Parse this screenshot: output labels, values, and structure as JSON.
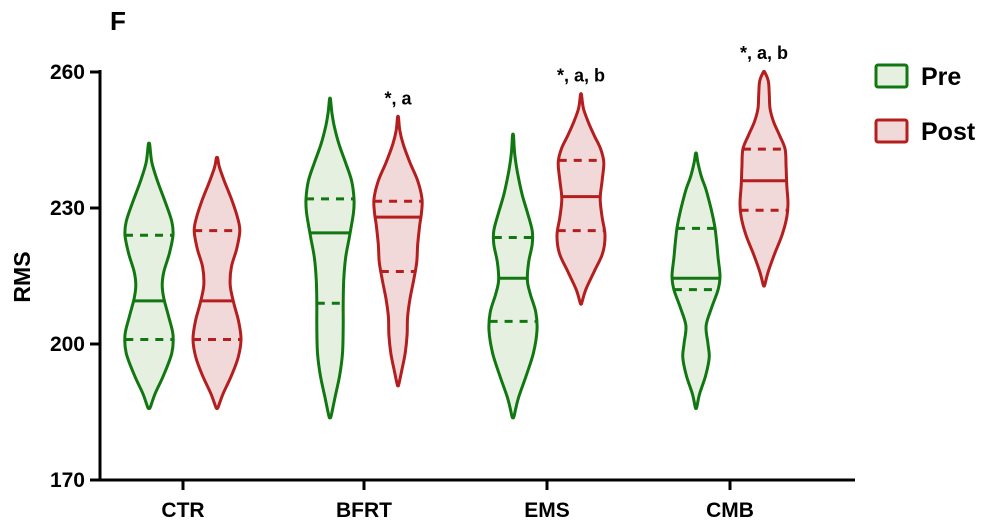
{
  "panel_label": "F",
  "colors": {
    "pre_stroke": "#117711",
    "pre_fill": "#e6f0e1",
    "post_stroke": "#b51e1e",
    "post_fill": "#f2d9d9",
    "axis": "#000000"
  },
  "chart_data": {
    "type": "violin",
    "ylabel": "RMS",
    "ylim": [
      170,
      260
    ],
    "yticks": [
      170,
      200,
      230,
      260
    ],
    "categories": [
      "CTR",
      "BFRT",
      "EMS",
      "CMB"
    ],
    "annotations": [
      "",
      "*, a",
      "*, a, b",
      "*, a, b"
    ],
    "legend": {
      "position": "top-right"
    },
    "series": [
      {
        "name": "Pre",
        "groups": [
          {
            "category": "CTR",
            "min": 186,
            "max": 244,
            "q1": 201,
            "median": 209.5,
            "q3": 224,
            "density": [
              [
                186,
                0.05
              ],
              [
                189,
                0.25
              ],
              [
                193,
                0.6
              ],
              [
                198,
                0.95
              ],
              [
                202,
                1.0
              ],
              [
                206,
                0.82
              ],
              [
                210,
                0.62
              ],
              [
                213,
                0.55
              ],
              [
                216,
                0.62
              ],
              [
                220,
                0.85
              ],
              [
                224,
                1.0
              ],
              [
                227,
                0.95
              ],
              [
                231,
                0.7
              ],
              [
                236,
                0.35
              ],
              [
                240,
                0.12
              ],
              [
                244,
                0.03
              ]
            ]
          },
          {
            "category": "BFRT",
            "min": 184,
            "max": 254,
            "q1": 209,
            "median": 224.5,
            "q3": 232,
            "density": [
              [
                184,
                0.04
              ],
              [
                188,
                0.2
              ],
              [
                193,
                0.4
              ],
              [
                198,
                0.52
              ],
              [
                204,
                0.55
              ],
              [
                209,
                0.55
              ],
              [
                214,
                0.57
              ],
              [
                219,
                0.65
              ],
              [
                224,
                0.82
              ],
              [
                229,
                0.98
              ],
              [
                232,
                1.0
              ],
              [
                236,
                0.9
              ],
              [
                240,
                0.65
              ],
              [
                244,
                0.38
              ],
              [
                248,
                0.18
              ],
              [
                251,
                0.08
              ],
              [
                254,
                0.02
              ]
            ]
          },
          {
            "category": "EMS",
            "min": 184,
            "max": 246,
            "q1": 205,
            "median": 214.5,
            "q3": 223.5,
            "density": [
              [
                184,
                0.04
              ],
              [
                188,
                0.22
              ],
              [
                193,
                0.55
              ],
              [
                198,
                0.85
              ],
              [
                203,
                1.0
              ],
              [
                207,
                0.95
              ],
              [
                211,
                0.72
              ],
              [
                214,
                0.6
              ],
              [
                218,
                0.65
              ],
              [
                222,
                0.8
              ],
              [
                225,
                0.8
              ],
              [
                229,
                0.6
              ],
              [
                233,
                0.38
              ],
              [
                238,
                0.18
              ],
              [
                242,
                0.07
              ],
              [
                246,
                0.02
              ]
            ]
          },
          {
            "category": "CMB",
            "min": 186,
            "max": 242,
            "q1": 212,
            "median": 214.5,
            "q3": 225.5,
            "density": [
              [
                186,
                0.03
              ],
              [
                189,
                0.15
              ],
              [
                193,
                0.4
              ],
              [
                197,
                0.55
              ],
              [
                200,
                0.5
              ],
              [
                204,
                0.42
              ],
              [
                208,
                0.65
              ],
              [
                212,
                0.92
              ],
              [
                215,
                1.0
              ],
              [
                219,
                0.92
              ],
              [
                223,
                0.85
              ],
              [
                226,
                0.78
              ],
              [
                230,
                0.62
              ],
              [
                234,
                0.42
              ],
              [
                237,
                0.22
              ],
              [
                240,
                0.08
              ],
              [
                242,
                0.02
              ]
            ]
          }
        ]
      },
      {
        "name": "Post",
        "groups": [
          {
            "category": "CTR",
            "min": 186,
            "max": 241,
            "q1": 201,
            "median": 209.5,
            "q3": 225,
            "density": [
              [
                186,
                0.04
              ],
              [
                189,
                0.25
              ],
              [
                193,
                0.6
              ],
              [
                197,
                0.88
              ],
              [
                201,
                1.0
              ],
              [
                205,
                0.9
              ],
              [
                209,
                0.7
              ],
              [
                213,
                0.55
              ],
              [
                217,
                0.6
              ],
              [
                221,
                0.82
              ],
              [
                225,
                0.95
              ],
              [
                228,
                0.85
              ],
              [
                232,
                0.6
              ],
              [
                236,
                0.3
              ],
              [
                239,
                0.1
              ],
              [
                241,
                0.03
              ]
            ]
          },
          {
            "category": "BFRT",
            "min": 191,
            "max": 250,
            "q1": 216,
            "median": 228,
            "q3": 231.5,
            "density": [
              [
                191,
                0.03
              ],
              [
                194,
                0.15
              ],
              [
                198,
                0.3
              ],
              [
                202,
                0.38
              ],
              [
                206,
                0.4
              ],
              [
                210,
                0.5
              ],
              [
                214,
                0.65
              ],
              [
                218,
                0.78
              ],
              [
                222,
                0.82
              ],
              [
                226,
                0.9
              ],
              [
                229,
                0.98
              ],
              [
                232,
                1.0
              ],
              [
                236,
                0.82
              ],
              [
                240,
                0.5
              ],
              [
                244,
                0.22
              ],
              [
                247,
                0.08
              ],
              [
                250,
                0.02
              ]
            ]
          },
          {
            "category": "EMS",
            "min": 209,
            "max": 255,
            "q1": 225,
            "median": 232.5,
            "q3": 240.5,
            "density": [
              [
                209,
                0.03
              ],
              [
                212,
                0.2
              ],
              [
                216,
                0.55
              ],
              [
                220,
                0.9
              ],
              [
                224,
                1.0
              ],
              [
                228,
                0.88
              ],
              [
                232,
                0.8
              ],
              [
                236,
                0.88
              ],
              [
                240,
                0.95
              ],
              [
                243,
                0.82
              ],
              [
                246,
                0.55
              ],
              [
                249,
                0.3
              ],
              [
                252,
                0.1
              ],
              [
                255,
                0.02
              ]
            ]
          },
          {
            "category": "CMB",
            "min": 213,
            "max": 260,
            "q1": 229.5,
            "median": 236,
            "q3": 243,
            "density": [
              [
                213,
                0.03
              ],
              [
                216,
                0.18
              ],
              [
                220,
                0.45
              ],
              [
                224,
                0.75
              ],
              [
                228,
                0.95
              ],
              [
                231,
                1.0
              ],
              [
                235,
                0.95
              ],
              [
                239,
                0.92
              ],
              [
                243,
                0.88
              ],
              [
                246,
                0.65
              ],
              [
                249,
                0.4
              ],
              [
                252,
                0.25
              ],
              [
                255,
                0.22
              ],
              [
                258,
                0.18
              ],
              [
                260,
                0.03
              ]
            ]
          }
        ]
      }
    ]
  }
}
